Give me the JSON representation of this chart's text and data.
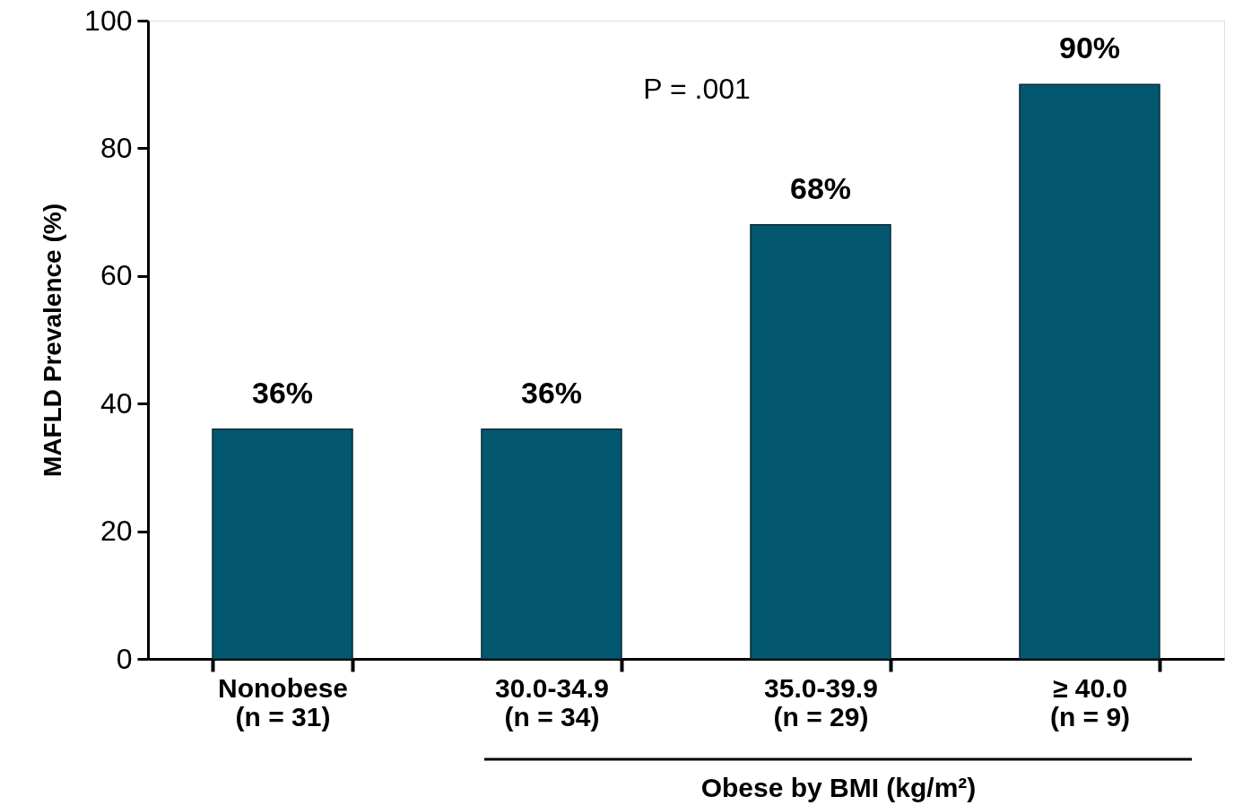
{
  "chart_data": {
    "type": "bar",
    "categories": [
      "Nonobese\n(n = 31)",
      "30.0-34.9\n(n = 34)",
      "35.0-39.9\n(n = 29)",
      "≥ 40.0\n(n = 9)"
    ],
    "values": [
      36,
      36,
      68,
      90
    ],
    "color": "#03586f",
    "ylim": [
      0,
      100
    ],
    "yticks": [
      0,
      20,
      40,
      60,
      80,
      100
    ],
    "ylabel": "MAFLD Prevalence (%)",
    "xlabel": "Obese by BMI (kg/m²)",
    "annotations": [
      "P = .001"
    ],
    "value_labels": [
      "36%",
      "36%",
      "68%",
      "90%"
    ],
    "grid": false
  }
}
